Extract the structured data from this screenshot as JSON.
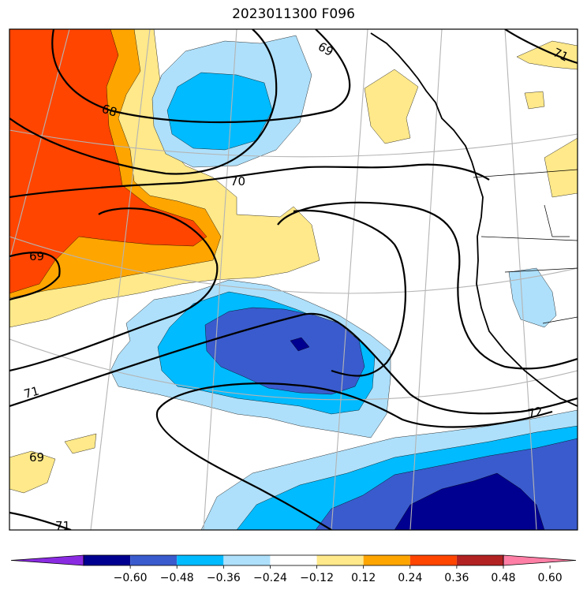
{
  "title": "2023011300 F096",
  "colors": {
    "lt_blue": "#aee0fb",
    "blue": "#00bbff",
    "mid_blue": "#3a5bcd",
    "navy": "#000090",
    "purple": "#8a2be2",
    "yellow": "#ffe98a",
    "orange": "#ffa500",
    "red_orange": "#ff4500",
    "dark_red": "#b22222",
    "pink": "#ff7fa6"
  },
  "contour_labels": [
    "69",
    "68",
    "70",
    "69",
    "71",
    "72",
    "69",
    "71",
    "71"
  ],
  "colorbar": {
    "segment_colors": [
      "#8a2be2",
      "#000090",
      "#3a5bcd",
      "#00bbff",
      "#aee0fb",
      "#ffffff",
      "#ffe98a",
      "#ffa500",
      "#ff4500",
      "#b22222",
      "#ff7fa6"
    ],
    "tick_labels": [
      "−0.60",
      "−0.48",
      "−0.36",
      "−0.24",
      "−0.12",
      "0.12",
      "0.24",
      "0.36",
      "0.48",
      "0.60"
    ]
  }
}
